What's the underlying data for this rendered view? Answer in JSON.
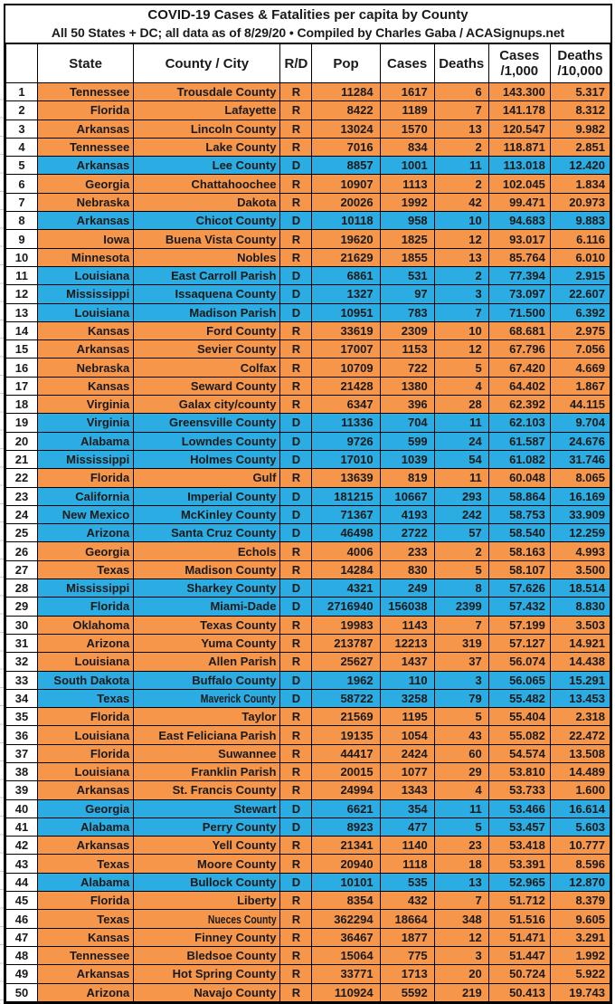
{
  "title": "COVID-19 Cases & Fatalities per capita by County",
  "subtitle": "All 50 States + DC; all data as of 8/29/20  • Compiled by Charles Gaba / ACASignups.net",
  "colors": {
    "republican_row": "#F6964A",
    "democrat_row": "#2BACE2",
    "text": "#1A1A1A",
    "grid_line": "#000000"
  },
  "table": {
    "headers": {
      "rank": "",
      "state": "State",
      "county": "County / City",
      "party": "R/D",
      "pop": "Pop",
      "cases": "Cases",
      "deaths": "Deaths",
      "cases_rate_line1": "Cases",
      "cases_rate_line2": "/1,000",
      "deaths_rate_line1": "Deaths",
      "deaths_rate_line2": "/10,000"
    },
    "rows": [
      {
        "rank": "1",
        "state": "Tennessee",
        "county": "Trousdale County",
        "party": "R",
        "pop": "11284",
        "cases": "1617",
        "deaths": "6",
        "cases_per_1000": "143.300",
        "deaths_per_10000": "5.317"
      },
      {
        "rank": "2",
        "state": "Florida",
        "county": "Lafayette",
        "party": "R",
        "pop": "8422",
        "cases": "1189",
        "deaths": "7",
        "cases_per_1000": "141.178",
        "deaths_per_10000": "8.312"
      },
      {
        "rank": "3",
        "state": "Arkansas",
        "county": "Lincoln County",
        "party": "R",
        "pop": "13024",
        "cases": "1570",
        "deaths": "13",
        "cases_per_1000": "120.547",
        "deaths_per_10000": "9.982"
      },
      {
        "rank": "4",
        "state": "Tennessee",
        "county": "Lake County",
        "party": "R",
        "pop": "7016",
        "cases": "834",
        "deaths": "2",
        "cases_per_1000": "118.871",
        "deaths_per_10000": "2.851"
      },
      {
        "rank": "5",
        "state": "Arkansas",
        "county": "Lee County",
        "party": "D",
        "pop": "8857",
        "cases": "1001",
        "deaths": "11",
        "cases_per_1000": "113.018",
        "deaths_per_10000": "12.420"
      },
      {
        "rank": "6",
        "state": "Georgia",
        "county": "Chattahoochee",
        "party": "R",
        "pop": "10907",
        "cases": "1113",
        "deaths": "2",
        "cases_per_1000": "102.045",
        "deaths_per_10000": "1.834"
      },
      {
        "rank": "7",
        "state": "Nebraska",
        "county": "Dakota",
        "party": "R",
        "pop": "20026",
        "cases": "1992",
        "deaths": "42",
        "cases_per_1000": "99.471",
        "deaths_per_10000": "20.973"
      },
      {
        "rank": "8",
        "state": "Arkansas",
        "county": "Chicot County",
        "party": "D",
        "pop": "10118",
        "cases": "958",
        "deaths": "10",
        "cases_per_1000": "94.683",
        "deaths_per_10000": "9.883"
      },
      {
        "rank": "9",
        "state": "Iowa",
        "county": "Buena Vista County",
        "party": "R",
        "pop": "19620",
        "cases": "1825",
        "deaths": "12",
        "cases_per_1000": "93.017",
        "deaths_per_10000": "6.116"
      },
      {
        "rank": "10",
        "state": "Minnesota",
        "county": "Nobles",
        "party": "R",
        "pop": "21629",
        "cases": "1855",
        "deaths": "13",
        "cases_per_1000": "85.764",
        "deaths_per_10000": "6.010"
      },
      {
        "rank": "11",
        "state": "Louisiana",
        "county": "East Carroll Parish",
        "party": "D",
        "pop": "6861",
        "cases": "531",
        "deaths": "2",
        "cases_per_1000": "77.394",
        "deaths_per_10000": "2.915"
      },
      {
        "rank": "12",
        "state": "Mississippi",
        "county": "Issaquena County",
        "party": "D",
        "pop": "1327",
        "cases": "97",
        "deaths": "3",
        "cases_per_1000": "73.097",
        "deaths_per_10000": "22.607"
      },
      {
        "rank": "13",
        "state": "Louisiana",
        "county": "Madison Parish",
        "party": "D",
        "pop": "10951",
        "cases": "783",
        "deaths": "7",
        "cases_per_1000": "71.500",
        "deaths_per_10000": "6.392"
      },
      {
        "rank": "14",
        "state": "Kansas",
        "county": "Ford County",
        "party": "R",
        "pop": "33619",
        "cases": "2309",
        "deaths": "10",
        "cases_per_1000": "68.681",
        "deaths_per_10000": "2.975"
      },
      {
        "rank": "15",
        "state": "Arkansas",
        "county": "Sevier County",
        "party": "R",
        "pop": "17007",
        "cases": "1153",
        "deaths": "12",
        "cases_per_1000": "67.796",
        "deaths_per_10000": "7.056"
      },
      {
        "rank": "16",
        "state": "Nebraska",
        "county": "Colfax",
        "party": "R",
        "pop": "10709",
        "cases": "722",
        "deaths": "5",
        "cases_per_1000": "67.420",
        "deaths_per_10000": "4.669"
      },
      {
        "rank": "17",
        "state": "Kansas",
        "county": "Seward County",
        "party": "R",
        "pop": "21428",
        "cases": "1380",
        "deaths": "4",
        "cases_per_1000": "64.402",
        "deaths_per_10000": "1.867"
      },
      {
        "rank": "18",
        "state": "Virginia",
        "county": "Galax city/county",
        "party": "R",
        "pop": "6347",
        "cases": "396",
        "deaths": "28",
        "cases_per_1000": "62.392",
        "deaths_per_10000": "44.115"
      },
      {
        "rank": "19",
        "state": "Virginia",
        "county": "Greensville County",
        "party": "D",
        "pop": "11336",
        "cases": "704",
        "deaths": "11",
        "cases_per_1000": "62.103",
        "deaths_per_10000": "9.704"
      },
      {
        "rank": "20",
        "state": "Alabama",
        "county": "Lowndes County",
        "party": "D",
        "pop": "9726",
        "cases": "599",
        "deaths": "24",
        "cases_per_1000": "61.587",
        "deaths_per_10000": "24.676"
      },
      {
        "rank": "21",
        "state": "Mississippi",
        "county": "Holmes County",
        "party": "D",
        "pop": "17010",
        "cases": "1039",
        "deaths": "54",
        "cases_per_1000": "61.082",
        "deaths_per_10000": "31.746"
      },
      {
        "rank": "22",
        "state": "Florida",
        "county": "Gulf",
        "party": "R",
        "pop": "13639",
        "cases": "819",
        "deaths": "11",
        "cases_per_1000": "60.048",
        "deaths_per_10000": "8.065"
      },
      {
        "rank": "23",
        "state": "California",
        "county": "Imperial County",
        "party": "D",
        "pop": "181215",
        "cases": "10667",
        "deaths": "293",
        "cases_per_1000": "58.864",
        "deaths_per_10000": "16.169"
      },
      {
        "rank": "24",
        "state": "New Mexico",
        "county": "McKinley County",
        "party": "D",
        "pop": "71367",
        "cases": "4193",
        "deaths": "242",
        "cases_per_1000": "58.753",
        "deaths_per_10000": "33.909"
      },
      {
        "rank": "25",
        "state": "Arizona",
        "county": "Santa Cruz County",
        "party": "D",
        "pop": "46498",
        "cases": "2722",
        "deaths": "57",
        "cases_per_1000": "58.540",
        "deaths_per_10000": "12.259"
      },
      {
        "rank": "26",
        "state": "Georgia",
        "county": "Echols",
        "party": "R",
        "pop": "4006",
        "cases": "233",
        "deaths": "2",
        "cases_per_1000": "58.163",
        "deaths_per_10000": "4.993"
      },
      {
        "rank": "27",
        "state": "Texas",
        "county": "Madison County",
        "party": "R",
        "pop": "14284",
        "cases": "830",
        "deaths": "5",
        "cases_per_1000": "58.107",
        "deaths_per_10000": "3.500"
      },
      {
        "rank": "28",
        "state": "Mississippi",
        "county": "Sharkey County",
        "party": "D",
        "pop": "4321",
        "cases": "249",
        "deaths": "8",
        "cases_per_1000": "57.626",
        "deaths_per_10000": "18.514"
      },
      {
        "rank": "29",
        "state": "Florida",
        "county": "Miami-Dade",
        "party": "D",
        "pop": "2716940",
        "cases": "156038",
        "deaths": "2399",
        "cases_per_1000": "57.432",
        "deaths_per_10000": "8.830"
      },
      {
        "rank": "30",
        "state": "Oklahoma",
        "county": "Texas County",
        "party": "R",
        "pop": "19983",
        "cases": "1143",
        "deaths": "7",
        "cases_per_1000": "57.199",
        "deaths_per_10000": "3.503"
      },
      {
        "rank": "31",
        "state": "Arizona",
        "county": "Yuma County",
        "party": "R",
        "pop": "213787",
        "cases": "12213",
        "deaths": "319",
        "cases_per_1000": "57.127",
        "deaths_per_10000": "14.921"
      },
      {
        "rank": "32",
        "state": "Louisiana",
        "county": "Allen Parish",
        "party": "R",
        "pop": "25627",
        "cases": "1437",
        "deaths": "37",
        "cases_per_1000": "56.074",
        "deaths_per_10000": "14.438"
      },
      {
        "rank": "33",
        "state": "South Dakota",
        "county": "Buffalo County",
        "party": "D",
        "pop": "1962",
        "cases": "110",
        "deaths": "3",
        "cases_per_1000": "56.065",
        "deaths_per_10000": "15.291"
      },
      {
        "rank": "34",
        "state": "Texas",
        "county": "Maverick County",
        "party": "D",
        "pop": "58722",
        "cases": "3258",
        "deaths": "79",
        "cases_per_1000": "55.482",
        "deaths_per_10000": "13.453",
        "narrow": true
      },
      {
        "rank": "35",
        "state": "Florida",
        "county": "Taylor",
        "party": "R",
        "pop": "21569",
        "cases": "1195",
        "deaths": "5",
        "cases_per_1000": "55.404",
        "deaths_per_10000": "2.318"
      },
      {
        "rank": "36",
        "state": "Louisiana",
        "county": "East Feliciana Parish",
        "party": "R",
        "pop": "19135",
        "cases": "1054",
        "deaths": "43",
        "cases_per_1000": "55.082",
        "deaths_per_10000": "22.472"
      },
      {
        "rank": "37",
        "state": "Florida",
        "county": "Suwannee",
        "party": "R",
        "pop": "44417",
        "cases": "2424",
        "deaths": "60",
        "cases_per_1000": "54.574",
        "deaths_per_10000": "13.508"
      },
      {
        "rank": "38",
        "state": "Louisiana",
        "county": "Franklin Parish",
        "party": "R",
        "pop": "20015",
        "cases": "1077",
        "deaths": "29",
        "cases_per_1000": "53.810",
        "deaths_per_10000": "14.489"
      },
      {
        "rank": "39",
        "state": "Arkansas",
        "county": "St. Francis County",
        "party": "R",
        "pop": "24994",
        "cases": "1343",
        "deaths": "4",
        "cases_per_1000": "53.733",
        "deaths_per_10000": "1.600"
      },
      {
        "rank": "40",
        "state": "Georgia",
        "county": "Stewart",
        "party": "D",
        "pop": "6621",
        "cases": "354",
        "deaths": "11",
        "cases_per_1000": "53.466",
        "deaths_per_10000": "16.614"
      },
      {
        "rank": "41",
        "state": "Alabama",
        "county": "Perry County",
        "party": "D",
        "pop": "8923",
        "cases": "477",
        "deaths": "5",
        "cases_per_1000": "53.457",
        "deaths_per_10000": "5.603"
      },
      {
        "rank": "42",
        "state": "Arkansas",
        "county": "Yell County",
        "party": "R",
        "pop": "21341",
        "cases": "1140",
        "deaths": "23",
        "cases_per_1000": "53.418",
        "deaths_per_10000": "10.777"
      },
      {
        "rank": "43",
        "state": "Texas",
        "county": "Moore County",
        "party": "R",
        "pop": "20940",
        "cases": "1118",
        "deaths": "18",
        "cases_per_1000": "53.391",
        "deaths_per_10000": "8.596"
      },
      {
        "rank": "44",
        "state": "Alabama",
        "county": "Bullock County",
        "party": "D",
        "pop": "10101",
        "cases": "535",
        "deaths": "13",
        "cases_per_1000": "52.965",
        "deaths_per_10000": "12.870"
      },
      {
        "rank": "45",
        "state": "Florida",
        "county": "Liberty",
        "party": "R",
        "pop": "8354",
        "cases": "432",
        "deaths": "7",
        "cases_per_1000": "51.712",
        "deaths_per_10000": "8.379"
      },
      {
        "rank": "46",
        "state": "Texas",
        "county": "Nueces County",
        "party": "R",
        "pop": "362294",
        "cases": "18664",
        "deaths": "348",
        "cases_per_1000": "51.516",
        "deaths_per_10000": "9.605",
        "narrow": true
      },
      {
        "rank": "47",
        "state": "Kansas",
        "county": "Finney County",
        "party": "R",
        "pop": "36467",
        "cases": "1877",
        "deaths": "12",
        "cases_per_1000": "51.471",
        "deaths_per_10000": "3.291"
      },
      {
        "rank": "48",
        "state": "Tennessee",
        "county": "Bledsoe County",
        "party": "R",
        "pop": "15064",
        "cases": "775",
        "deaths": "3",
        "cases_per_1000": "51.447",
        "deaths_per_10000": "1.992"
      },
      {
        "rank": "49",
        "state": "Arkansas",
        "county": "Hot Spring County",
        "party": "R",
        "pop": "33771",
        "cases": "1713",
        "deaths": "20",
        "cases_per_1000": "50.724",
        "deaths_per_10000": "5.922"
      },
      {
        "rank": "50",
        "state": "Arizona",
        "county": "Navajo County",
        "party": "R",
        "pop": "110924",
        "cases": "5592",
        "deaths": "219",
        "cases_per_1000": "50.413",
        "deaths_per_10000": "19.743"
      }
    ]
  }
}
